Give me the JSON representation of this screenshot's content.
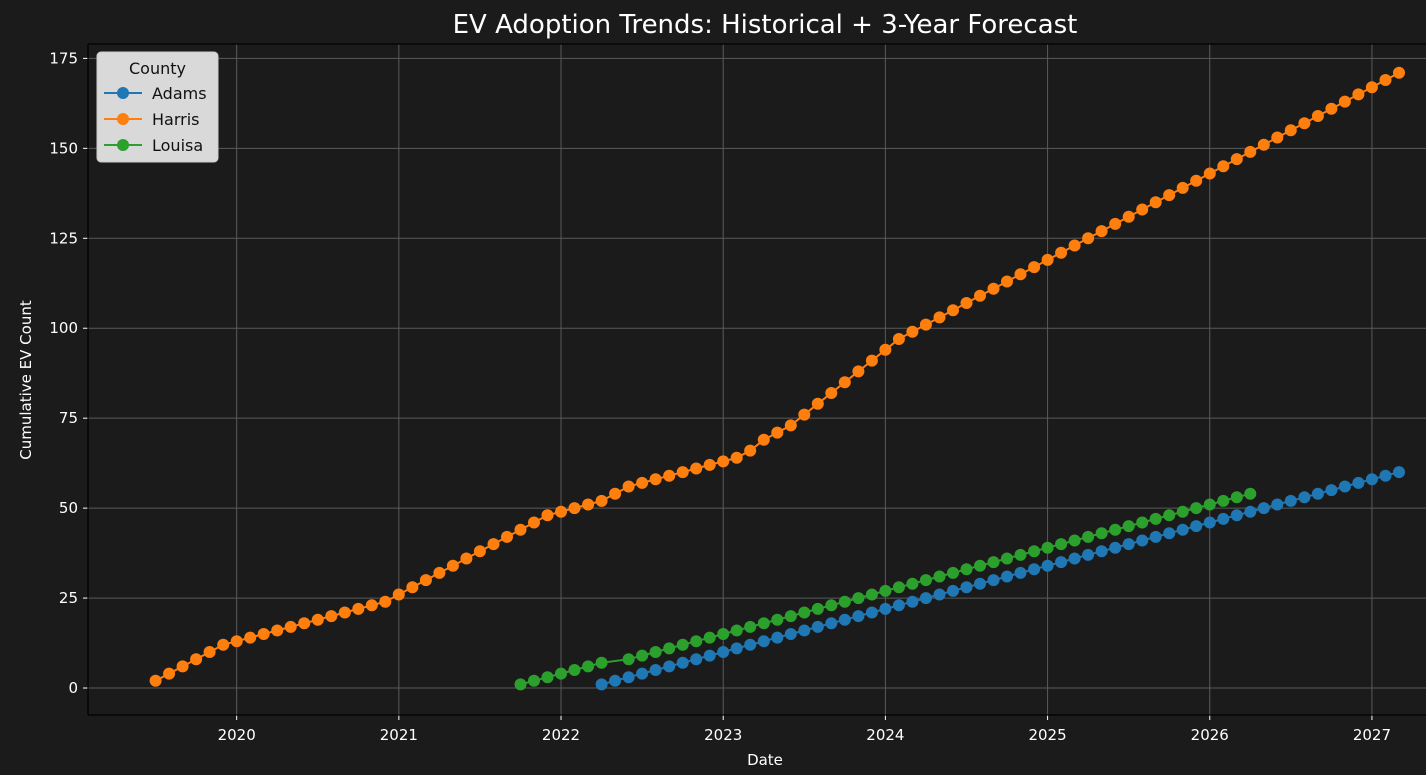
{
  "chart_data": {
    "type": "line",
    "title": "EV Adoption Trends: Historical + 3-Year Forecast",
    "xlabel": "Date",
    "ylabel": "Cumulative EV Count",
    "x_axis_type": "date",
    "xlim": [
      "2019-02-01",
      "2027-05-01"
    ],
    "ylim": [
      -7.5,
      179
    ],
    "xticks": [
      "2020",
      "2021",
      "2022",
      "2023",
      "2024",
      "2025",
      "2026",
      "2027"
    ],
    "yticks": [
      0,
      25,
      50,
      75,
      100,
      125,
      150,
      175
    ],
    "grid": true,
    "legend": {
      "title": "County",
      "placement": "top-left"
    },
    "marker": "circle",
    "series": [
      {
        "name": "Adams",
        "color": "#1f77b4",
        "x": [
          "2022-04",
          "2022-05",
          "2022-06",
          "2022-07",
          "2022-08",
          "2022-09",
          "2022-10",
          "2022-11",
          "2022-12",
          "2023-01",
          "2023-02",
          "2023-03",
          "2023-04",
          "2023-05",
          "2023-06",
          "2023-07",
          "2023-08",
          "2023-09",
          "2023-10",
          "2023-11",
          "2023-12",
          "2024-01",
          "2024-02",
          "2024-03",
          "2024-04",
          "2024-05",
          "2024-06",
          "2024-07",
          "2024-08",
          "2024-09",
          "2024-10",
          "2024-11",
          "2024-12",
          "2025-01",
          "2025-02",
          "2025-03",
          "2025-04",
          "2025-05",
          "2025-06",
          "2025-07",
          "2025-08",
          "2025-09",
          "2025-10",
          "2025-11",
          "2025-12",
          "2026-01",
          "2026-02",
          "2026-03",
          "2026-04",
          "2026-05",
          "2026-06",
          "2026-07",
          "2026-08",
          "2026-09",
          "2026-10",
          "2026-11",
          "2026-12",
          "2027-01",
          "2027-02",
          "2027-03"
        ],
        "values": [
          1,
          2,
          3,
          4,
          5,
          6,
          7,
          8,
          9,
          10,
          11,
          12,
          13,
          14,
          15,
          16,
          17,
          18,
          19,
          20,
          21,
          22,
          23,
          24,
          25,
          26,
          27,
          28,
          29,
          30,
          31,
          32,
          33,
          34,
          35,
          36,
          37,
          38,
          39,
          40,
          41,
          42,
          43,
          44,
          45,
          46,
          47,
          48,
          49,
          50,
          51,
          52,
          53,
          54,
          55,
          56,
          57,
          58,
          59,
          60
        ]
      },
      {
        "name": "Harris",
        "color": "#ff7f0e",
        "x": [
          "2019-07",
          "2019-08",
          "2019-09",
          "2019-10",
          "2019-11",
          "2019-12",
          "2020-01",
          "2020-02",
          "2020-03",
          "2020-04",
          "2020-05",
          "2020-06",
          "2020-07",
          "2020-08",
          "2020-09",
          "2020-10",
          "2020-11",
          "2020-12",
          "2021-01",
          "2021-02",
          "2021-03",
          "2021-04",
          "2021-05",
          "2021-06",
          "2021-07",
          "2021-08",
          "2021-09",
          "2021-10",
          "2021-11",
          "2021-12",
          "2022-01",
          "2022-02",
          "2022-03",
          "2022-04",
          "2022-05",
          "2022-06",
          "2022-07",
          "2022-08",
          "2022-09",
          "2022-10",
          "2022-11",
          "2022-12",
          "2023-01",
          "2023-02",
          "2023-03",
          "2023-04",
          "2023-05",
          "2023-06",
          "2023-07",
          "2023-08",
          "2023-09",
          "2023-10",
          "2023-11",
          "2023-12",
          "2024-01",
          "2024-02",
          "2024-03",
          "2024-04",
          "2024-05",
          "2024-06",
          "2024-07",
          "2024-08",
          "2024-09",
          "2024-10",
          "2024-11",
          "2024-12",
          "2025-01",
          "2025-02",
          "2025-03",
          "2025-04",
          "2025-05",
          "2025-06",
          "2025-07",
          "2025-08",
          "2025-09",
          "2025-10",
          "2025-11",
          "2025-12",
          "2026-01",
          "2026-02",
          "2026-03",
          "2026-04",
          "2026-05",
          "2026-06",
          "2026-07",
          "2026-08",
          "2026-09",
          "2026-10",
          "2026-11",
          "2026-12",
          "2027-01",
          "2027-02",
          "2027-03"
        ],
        "values": [
          2,
          4,
          6,
          8,
          10,
          12,
          13,
          14,
          15,
          16,
          17,
          18,
          19,
          20,
          21,
          22,
          23,
          24,
          26,
          28,
          30,
          32,
          34,
          36,
          38,
          40,
          42,
          44,
          46,
          48,
          49,
          50,
          51,
          52,
          54,
          56,
          57,
          58,
          59,
          60,
          61,
          62,
          63,
          64,
          66,
          69,
          71,
          73,
          76,
          79,
          82,
          85,
          88,
          91,
          94,
          97,
          99,
          101,
          103,
          105,
          107,
          109,
          111,
          113,
          115,
          117,
          119,
          121,
          123,
          125,
          127,
          129,
          131,
          133,
          135,
          137,
          139,
          141,
          143,
          145,
          147,
          149,
          151,
          153,
          155,
          157,
          159,
          161,
          163,
          165,
          167,
          169,
          171
        ]
      },
      {
        "name": "Louisa",
        "color": "#2ca02c",
        "x": [
          "2021-10",
          "2021-11",
          "2021-12",
          "2022-01",
          "2022-02",
          "2022-03",
          "2022-04",
          "2022-06",
          "2022-07",
          "2022-08",
          "2022-09",
          "2022-10",
          "2022-11",
          "2022-12",
          "2023-01",
          "2023-02",
          "2023-03",
          "2023-04",
          "2023-05",
          "2023-06",
          "2023-07",
          "2023-08",
          "2023-09",
          "2023-10",
          "2023-11",
          "2023-12",
          "2024-01",
          "2024-02",
          "2024-03",
          "2024-04",
          "2024-05",
          "2024-06",
          "2024-07",
          "2024-08",
          "2024-09",
          "2024-10",
          "2024-11",
          "2024-12",
          "2025-01",
          "2025-02",
          "2025-03",
          "2025-04",
          "2025-05",
          "2025-06",
          "2025-07",
          "2025-08",
          "2025-09",
          "2025-10",
          "2025-11",
          "2025-12",
          "2026-01",
          "2026-02",
          "2026-03",
          "2026-04"
        ],
        "values": [
          1,
          2,
          3,
          4,
          5,
          6,
          7,
          8,
          9,
          10,
          11,
          12,
          13,
          14,
          15,
          16,
          17,
          18,
          19,
          20,
          21,
          22,
          23,
          24,
          25,
          26,
          27,
          28,
          29,
          30,
          31,
          32,
          33,
          34,
          35,
          36,
          37,
          38,
          39,
          40,
          41,
          42,
          43,
          44,
          45,
          46,
          47,
          48,
          49,
          50,
          51,
          52,
          53,
          54
        ]
      }
    ]
  }
}
